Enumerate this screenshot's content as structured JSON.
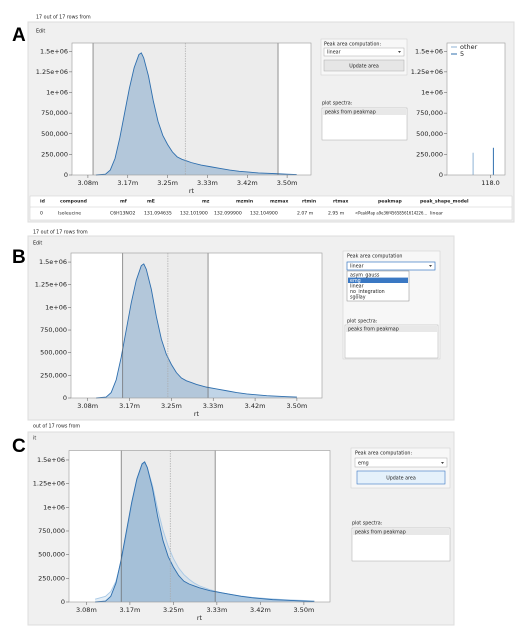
{
  "panels": [
    {
      "label": "A",
      "status": "17 out of 17 rows from",
      "menu": "Edit",
      "peak_area_label": "Peak area computation:",
      "method": "linear",
      "button": "Update area",
      "spectra_label": "plot spectra:",
      "spectra_item": "peaks from peakmap"
    },
    {
      "label": "B",
      "status": "17 out of 17 rows from",
      "menu": "Edit",
      "peak_area_label": "Peak area computation",
      "method": "linear",
      "options": [
        "asym_gauss",
        "emg",
        "linear",
        "no_integration",
        "sgolay"
      ],
      "spectra_label": "plot spectra:",
      "spectra_item": "peaks from peakmap"
    },
    {
      "label": "C",
      "status": "out of 17 rows from",
      "menu": "it",
      "peak_area_label": "Peak area computation:",
      "method": "emg",
      "button": "Update area",
      "spectra_label": "plot spectra:",
      "spectra_item": "peaks from peakmap"
    }
  ],
  "table": {
    "header": [
      "id",
      "compound",
      "mf",
      "mE",
      "mz",
      "mzmin",
      "mzmax",
      "rtmin",
      "rtmax",
      "peakmap",
      "peak_shape_model"
    ],
    "rows": [
      [
        "0",
        "Isoleucine",
        "C6H13NO2",
        "131.094635",
        "132.101900",
        "132.099900",
        "132.104900",
        "2.07 m",
        "2.95 m",
        "<PeakMap a9e36f45658561614226...",
        "linear"
      ]
    ]
  },
  "chart_data": [
    {
      "type": "area",
      "xlabel": "rt",
      "x": [
        3.1,
        3.12,
        3.13,
        3.14,
        3.15,
        3.16,
        3.17,
        3.18,
        3.19,
        3.195,
        3.2,
        3.21,
        3.22,
        3.23,
        3.24,
        3.25,
        3.26,
        3.27,
        3.28,
        3.29,
        3.3,
        3.32,
        3.34,
        3.36,
        3.38,
        3.4,
        3.42,
        3.44,
        3.46,
        3.48,
        3.5,
        3.52
      ],
      "series": [
        {
          "color": "#2f6fae",
          "values": [
            0,
            10000,
            60000,
            200000,
            450000,
            750000,
            1050000,
            1300000,
            1460000,
            1480000,
            1420000,
            1200000,
            900000,
            650000,
            480000,
            370000,
            280000,
            220000,
            190000,
            170000,
            150000,
            120000,
            100000,
            80000,
            60000,
            45000,
            35000,
            25000,
            20000,
            15000,
            10000,
            5000
          ]
        }
      ],
      "markers": [
        3.094,
        3.287,
        3.481
      ],
      "xlim": [
        3.05,
        3.55
      ],
      "ylim": [
        0,
        1600000
      ],
      "xticks": [
        {
          "value": 3.0833,
          "label": "3.08m"
        },
        {
          "value": 3.1667,
          "label": "3.17m"
        },
        {
          "value": 3.25,
          "label": "3.25m"
        },
        {
          "value": 3.3333,
          "label": "3.33m"
        },
        {
          "value": 3.4167,
          "label": "3.42m"
        },
        {
          "value": 3.5,
          "label": "3.50m"
        }
      ],
      "yticks": [
        0,
        {
          "value": 250000,
          "label": "250,000"
        },
        {
          "value": 500000,
          "label": "500,000"
        },
        {
          "value": 750000,
          "label": "750,000"
        },
        {
          "value": 1000000,
          "label": "1e+06"
        },
        {
          "value": 1250000,
          "label": "1.25e+06"
        },
        {
          "value": 1500000,
          "label": "1.5e+06"
        }
      ]
    },
    {
      "type": "area",
      "xlabel": "rt",
      "x": [
        3.1,
        3.12,
        3.13,
        3.14,
        3.15,
        3.16,
        3.17,
        3.18,
        3.19,
        3.195,
        3.2,
        3.21,
        3.22,
        3.23,
        3.24,
        3.25,
        3.26,
        3.27,
        3.28,
        3.29,
        3.3,
        3.32,
        3.34,
        3.36,
        3.38,
        3.4,
        3.42,
        3.44,
        3.46,
        3.48,
        3.5
      ],
      "series": [
        {
          "color": "#2f6fae",
          "values": [
            0,
            10000,
            60000,
            200000,
            450000,
            750000,
            1050000,
            1300000,
            1460000,
            1480000,
            1420000,
            1200000,
            900000,
            650000,
            480000,
            370000,
            280000,
            220000,
            190000,
            170000,
            150000,
            120000,
            100000,
            80000,
            60000,
            45000,
            35000,
            25000,
            20000,
            15000,
            10000
          ]
        }
      ],
      "markers": [
        3.153,
        3.243,
        3.323
      ],
      "xlim": [
        3.05,
        3.55
      ],
      "ylim": [
        0,
        1600000
      ],
      "xticks": [
        {
          "value": 3.0833,
          "label": "3.08m"
        },
        {
          "value": 3.1667,
          "label": "3.17m"
        },
        {
          "value": 3.25,
          "label": "3.25m"
        },
        {
          "value": 3.3333,
          "label": "3.33m"
        },
        {
          "value": 3.4167,
          "label": "3.42m"
        },
        {
          "value": 3.5,
          "label": "3.50m"
        }
      ],
      "yticks": [
        0,
        {
          "value": 250000,
          "label": "250,000"
        },
        {
          "value": 500000,
          "label": "500,000"
        },
        {
          "value": 750000,
          "label": "750,000"
        },
        {
          "value": 1000000,
          "label": "1e+06"
        },
        {
          "value": 1250000,
          "label": "1.25e+06"
        },
        {
          "value": 1500000,
          "label": "1.5e+06"
        }
      ]
    },
    {
      "type": "area",
      "xlabel": "rt",
      "x": [
        3.1,
        3.12,
        3.13,
        3.14,
        3.15,
        3.16,
        3.17,
        3.18,
        3.19,
        3.195,
        3.2,
        3.21,
        3.22,
        3.23,
        3.24,
        3.25,
        3.26,
        3.27,
        3.28,
        3.29,
        3.3,
        3.32,
        3.34,
        3.36,
        3.38,
        3.4,
        3.42,
        3.44,
        3.46,
        3.48,
        3.5,
        3.52
      ],
      "series": [
        {
          "color": "#a9c9e6",
          "values": [
            30000,
            60000,
            110000,
            220000,
            430000,
            720000,
            1030000,
            1290000,
            1450000,
            1470000,
            1420000,
            1230000,
            980000,
            760000,
            590000,
            460000,
            360000,
            290000,
            240000,
            200000,
            170000,
            130000,
            100000,
            80000,
            63000,
            50000,
            40000,
            32000,
            25000,
            20000,
            16000,
            12000
          ]
        },
        {
          "color": "#2f6fae",
          "values": [
            0,
            10000,
            60000,
            200000,
            450000,
            750000,
            1050000,
            1300000,
            1460000,
            1480000,
            1420000,
            1200000,
            900000,
            650000,
            480000,
            370000,
            280000,
            220000,
            190000,
            170000,
            150000,
            120000,
            100000,
            80000,
            60000,
            45000,
            35000,
            25000,
            20000,
            15000,
            10000,
            5000
          ]
        }
      ],
      "markers": [
        3.15,
        3.244,
        3.33
      ],
      "xlim": [
        3.05,
        3.55
      ],
      "ylim": [
        0,
        1600000
      ],
      "xticks": [
        {
          "value": 3.0833,
          "label": "3.08m"
        },
        {
          "value": 3.1667,
          "label": "3.17m"
        },
        {
          "value": 3.25,
          "label": "3.25m"
        },
        {
          "value": 3.3333,
          "label": "3.33m"
        },
        {
          "value": 3.4167,
          "label": "3.42m"
        },
        {
          "value": 3.5,
          "label": "3.50m"
        }
      ],
      "yticks": [
        0,
        {
          "value": 250000,
          "label": "250,000"
        },
        {
          "value": 500000,
          "label": "500,000"
        },
        {
          "value": 750000,
          "label": "750,000"
        },
        {
          "value": 1000000,
          "label": "1e+06"
        },
        {
          "value": 1250000,
          "label": "1.25e+06"
        },
        {
          "value": 1500000,
          "label": "1.5e+06"
        }
      ]
    },
    {
      "type": "spectrum",
      "series": [
        {
          "name": "other",
          "color": "#8fb3d6",
          "x": [
            117.94
          ],
          "values": [
            270000
          ]
        },
        {
          "name": "5",
          "color": "#2f6fae",
          "x": [
            118.01
          ],
          "values": [
            330000
          ]
        }
      ],
      "xlim": [
        117.85,
        118.05
      ],
      "ylim": [
        0,
        1600000
      ],
      "xticks": [
        {
          "value": 118.0,
          "label": "118.0"
        }
      ],
      "yticks": [
        0,
        {
          "value": 250000,
          "label": "250,000"
        },
        {
          "value": 500000,
          "label": "500,000"
        },
        {
          "value": 750000,
          "label": "750,000"
        },
        {
          "value": 1000000,
          "label": "1e+06"
        },
        {
          "value": 1250000,
          "label": "1.25e+06"
        },
        {
          "value": 1500000,
          "label": "1.5e+06"
        }
      ]
    }
  ]
}
